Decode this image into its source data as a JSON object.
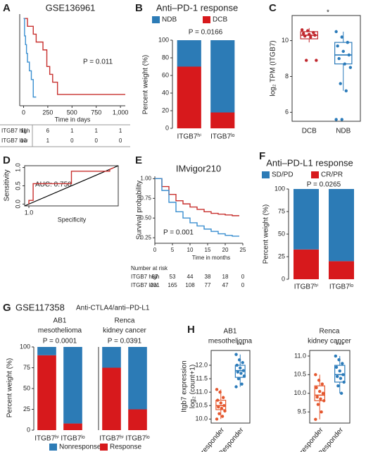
{
  "chart_data": [
    {
      "panel": "A",
      "type": "line",
      "step": true,
      "title": "GSE136961",
      "x_label": "Time in days",
      "annotation": "P = 0.011",
      "xlim": [
        -40,
        1050
      ],
      "ylim": [
        0,
        1.05
      ],
      "xticks": [
        0,
        250,
        500,
        750,
        {
          "value": 1000,
          "label": "1,000"
        }
      ],
      "series": [
        {
          "name": "ITGB7 high",
          "color": "#c8302e",
          "x": [
            0,
            40,
            100,
            130,
            200,
            240,
            270,
            300,
            350,
            1050
          ],
          "values": [
            1,
            0.91,
            0.82,
            0.73,
            0.64,
            0.45,
            0.36,
            0.27,
            0.13,
            0.13
          ]
        },
        {
          "name": "ITGB7 low",
          "color": "#3a8fd0",
          "x": [
            0,
            10,
            20,
            30,
            40,
            60,
            80,
            100,
            130
          ],
          "values": [
            1,
            0.8,
            0.7,
            0.6,
            0.5,
            0.4,
            0.3,
            0.1,
            0.1
          ]
        }
      ],
      "risk_table": {
        "rows": [
          [
            11,
            6,
            1,
            1,
            1
          ],
          [
            10,
            1,
            0,
            0,
            0
          ]
        ]
      }
    },
    {
      "panel": "B",
      "type": "stacked_bar",
      "title": "Anti–PD-1 response",
      "annotation": "P = 0.0166",
      "y_label": "Percent weight (%)",
      "categories": [
        "ITGB7ʰⁱ",
        "ITGB7ˡᵒ"
      ],
      "ylim": [
        0,
        100
      ],
      "yticks": [
        0,
        20,
        40,
        60,
        80,
        100
      ],
      "series": [
        {
          "name": "DCB",
          "color": "#d7191c",
          "values": [
            70,
            18
          ]
        },
        {
          "name": "NDB",
          "color": "#2c7bb6",
          "values": [
            30,
            82
          ]
        }
      ]
    },
    {
      "panel": "C",
      "type": "box",
      "annotation": "*",
      "y_label": "log₂ TPM (ITGB7)",
      "categories": [
        "DCB",
        "NDB"
      ],
      "ylim": [
        5.5,
        11.4
      ],
      "yticks": [
        6,
        8,
        10
      ],
      "colors": [
        "#c0272d",
        "#2b7bba"
      ],
      "boxes": [
        {
          "low": 9.9,
          "q1": 10.1,
          "median": 10.3,
          "q3": 10.5,
          "high": 10.7,
          "points": [
            10.6,
            10.55,
            10.45,
            10.4,
            10.35,
            10.3,
            10.25,
            10.2,
            8.9,
            8.9
          ]
        },
        {
          "low": 7.2,
          "q1": 8.7,
          "median": 9.2,
          "q3": 9.9,
          "high": 10.5,
          "points": [
            10.5,
            10.2,
            9.9,
            9.7,
            9.4,
            9.2,
            9.0,
            8.7,
            8.5,
            7.6,
            7.2,
            5.6,
            5.6
          ]
        }
      ]
    },
    {
      "panel": "D",
      "type": "line",
      "step": false,
      "annotation": "AUC: 0.750",
      "x_label": "Specificity",
      "y_label": "Sensitivity",
      "xlim": [
        1.05,
        -0.05
      ],
      "ylim": [
        -0.05,
        1.05
      ],
      "xticks": [
        {
          "value": 1,
          "label": "1.0"
        }
      ],
      "yticks": [
        {
          "value": 0,
          "label": "0.0"
        },
        0.5,
        {
          "value": 1,
          "label": "1.0"
        }
      ],
      "series": [
        {
          "color": "#c8302e",
          "x": [
            1,
            1,
            0.95,
            0.95,
            0.5,
            0.5,
            0.05,
            0.05,
            0
          ],
          "values": [
            0,
            0.1,
            0.1,
            0.56,
            0.56,
            0.9,
            0.9,
            0.95,
            1
          ]
        }
      ]
    },
    {
      "panel": "E",
      "type": "line",
      "step": true,
      "title": "IMvigor210",
      "x_label": "Time in months",
      "y_label": "Survival probability",
      "annotation": "P = 0.001",
      "xlim": [
        0,
        25
      ],
      "ylim": [
        0.18,
        1.03
      ],
      "xticks": [
        0,
        5,
        10,
        15,
        20,
        25
      ],
      "yticks": [
        0.25,
        {
          "value": 0.5,
          "label": "0.50"
        },
        0.75,
        {
          "value": 1,
          "label": "1.00"
        }
      ],
      "series": [
        {
          "name": "ITGB7 high",
          "color": "#c8302e",
          "x": [
            0,
            2,
            4,
            6,
            8,
            10,
            12,
            14,
            16,
            18,
            20,
            22,
            24
          ],
          "values": [
            1,
            0.9,
            0.8,
            0.72,
            0.68,
            0.64,
            0.61,
            0.58,
            0.56,
            0.55,
            0.54,
            0.53,
            0.53
          ]
        },
        {
          "name": "ITGB7 low",
          "color": "#3a8fd0",
          "x": [
            0,
            2,
            4,
            6,
            8,
            10,
            12,
            14,
            16,
            18,
            20,
            22,
            24
          ],
          "values": [
            1,
            0.85,
            0.7,
            0.58,
            0.5,
            0.44,
            0.4,
            0.36,
            0.33,
            0.3,
            0.28,
            0.27,
            0.27
          ]
        }
      ],
      "risk_table": {
        "title": "Number at risk",
        "rows": [
          [
            67,
            53,
            44,
            38,
            18,
            0
          ],
          [
            231,
            165,
            108,
            77,
            47,
            0
          ]
        ]
      }
    },
    {
      "panel": "F",
      "type": "stacked_bar",
      "title": "Anti–PD-L1 response",
      "annotation": "P = 0.0265",
      "y_label": "Percent weight (%)",
      "categories": [
        "ITGB7ʰⁱ",
        "ITGB7ˡᵒ"
      ],
      "ylim": [
        0,
        100
      ],
      "yticks": [
        0,
        25,
        50,
        75,
        100
      ],
      "series": [
        {
          "name": "CR/PR",
          "color": "#d7191c",
          "values": [
            33,
            20
          ]
        },
        {
          "name": "SD/PD",
          "color": "#2c7bb6",
          "values": [
            67,
            80
          ]
        }
      ]
    },
    {
      "panel": "G",
      "type": "stacked_bar",
      "title": "GSE117358",
      "subtitle": "Anti-CTLA4/anti–PD-L1",
      "title_lines": [
        "AB1",
        "mesothelioma"
      ],
      "annotation": "P = 0.0001",
      "y_label": "Percent weight (%)",
      "categories": [
        "ITGB7ʰⁱ",
        "ITGB7ˡᵒ"
      ],
      "ylim": [
        0,
        100
      ],
      "yticks": [
        0,
        25,
        50,
        75,
        100
      ],
      "series": [
        {
          "name": "Response",
          "color": "#d7191c",
          "values": [
            90,
            8
          ]
        },
        {
          "name": "Nonresponse",
          "color": "#2c7bb6",
          "values": [
            10,
            92
          ]
        }
      ]
    },
    {
      "type": "stacked_bar",
      "title_lines": [
        "Renca",
        "kidney cancer"
      ],
      "annotation": "P = 0.0391",
      "categories": [
        "ITGB7ʰⁱ",
        "ITGB7ˡᵒ"
      ],
      "ylim": [
        0,
        100
      ],
      "series": [
        {
          "color": "#d7191c",
          "values": [
            75,
            25
          ]
        },
        {
          "color": "#2c7bb6",
          "values": [
            25,
            75
          ]
        }
      ]
    },
    {
      "panel": "H",
      "type": "box",
      "title_lines": [
        "AB1",
        "mesothelioma"
      ],
      "annotation": "***",
      "y_label": [
        "Itgb7 expression",
        "log₂ (count+1)"
      ],
      "categories": [
        "Non-responder",
        "Responder"
      ],
      "ylim": [
        9.85,
        12.55
      ],
      "yticks": [
        {
          "value": 10,
          "label": "10.0"
        },
        10.5,
        {
          "value": 11,
          "label": "11.0"
        },
        11.5,
        {
          "value": 12,
          "label": "12.0"
        }
      ],
      "colors": [
        "#e4572e",
        "#2b7bba"
      ],
      "boxes": [
        {
          "low": 10.0,
          "q1": 10.35,
          "median": 10.5,
          "q3": 10.7,
          "high": 11.1,
          "points": [
            11.1,
            11.0,
            10.8,
            10.7,
            10.6,
            10.5,
            10.45,
            10.4,
            10.3,
            10.2,
            10.1,
            10.0
          ]
        },
        {
          "low": 11.2,
          "q1": 11.55,
          "median": 11.8,
          "q3": 12.0,
          "high": 12.4,
          "points": [
            12.4,
            12.2,
            12.1,
            12.0,
            11.9,
            11.8,
            11.75,
            11.7,
            11.6,
            11.5,
            11.3,
            11.2
          ]
        }
      ]
    },
    {
      "type": "box",
      "title_lines": [
        "Renca",
        "kidney cancer"
      ],
      "annotation": "***",
      "categories": [
        "Non-responder",
        "Responder"
      ],
      "ylim": [
        9.2,
        11.15
      ],
      "yticks": [
        9.5,
        {
          "value": 10,
          "label": "10.0"
        },
        10.5,
        {
          "value": 11,
          "label": "11.0"
        }
      ],
      "colors": [
        "#e4572e",
        "#2b7bba"
      ],
      "boxes": [
        {
          "low": 9.3,
          "q1": 9.8,
          "median": 9.95,
          "q3": 10.2,
          "high": 10.5,
          "points": [
            10.5,
            10.35,
            10.25,
            10.15,
            10.05,
            10.0,
            9.9,
            9.85,
            9.8,
            9.7,
            9.5,
            9.3
          ]
        },
        {
          "low": 10.0,
          "q1": 10.3,
          "median": 10.5,
          "q3": 10.75,
          "high": 11.0,
          "points": [
            11.0,
            10.9,
            10.8,
            10.7,
            10.6,
            10.5,
            10.45,
            10.4,
            10.3,
            10.2,
            10.0
          ]
        }
      ]
    }
  ]
}
